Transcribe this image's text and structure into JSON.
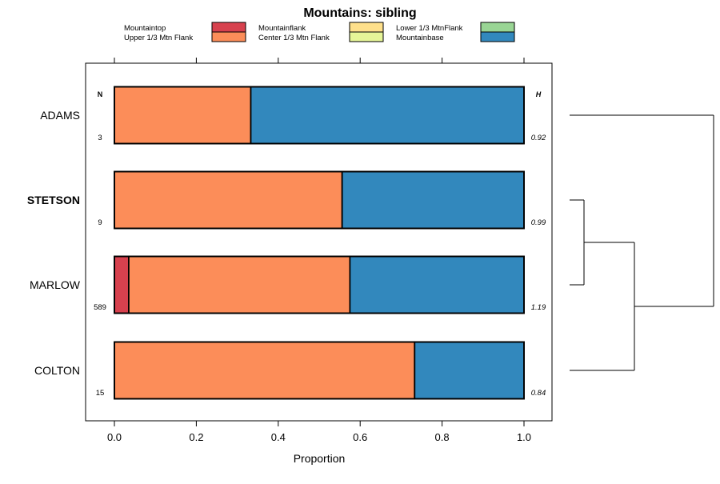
{
  "chart_data": {
    "type": "bar",
    "stacked": true,
    "orientation": "horizontal",
    "title": "Mountains: sibling",
    "xlabel": "Proportion",
    "ylabel": "",
    "xlim": [
      0,
      1
    ],
    "xticks": [
      "0.0",
      "0.2",
      "0.4",
      "0.6",
      "0.8",
      "1.0"
    ],
    "n_header": "N",
    "h_header": "H",
    "legend_position": "top",
    "legend": [
      {
        "name": "Mountaintop",
        "color": "#d7414e"
      },
      {
        "name": "Upper 1/3 Mtn Flank",
        "color": "#fc8d59"
      },
      {
        "name": "Mountainflank",
        "color": "#fee08b"
      },
      {
        "name": "Center 1/3 Mtn Flank",
        "color": "#e6f598"
      },
      {
        "name": "Lower 1/3 MtnFlank",
        "color": "#99d594"
      },
      {
        "name": "Mountainbase",
        "color": "#3288bd"
      }
    ],
    "categories": [
      "ADAMS",
      "STETSON",
      "MARLOW",
      "COLTON"
    ],
    "bold_category": "STETSON",
    "n_values": [
      "3",
      "9",
      "589",
      "15"
    ],
    "h_values": [
      "0.92",
      "0.99",
      "1.19",
      "0.84"
    ],
    "series": [
      {
        "name": "Mountaintop",
        "values": [
          0,
          0,
          0.035,
          0
        ]
      },
      {
        "name": "Upper 1/3 Mtn Flank",
        "values": [
          0.333,
          0.556,
          0.54,
          0.733
        ]
      },
      {
        "name": "Mountainflank",
        "values": [
          0,
          0,
          0,
          0
        ]
      },
      {
        "name": "Center 1/3 Mtn Flank",
        "values": [
          0,
          0,
          0,
          0
        ]
      },
      {
        "name": "Lower 1/3 MtnFlank",
        "values": [
          0,
          0,
          0,
          0
        ]
      },
      {
        "name": "Mountainbase",
        "values": [
          0.667,
          0.444,
          0.425,
          0.267
        ]
      }
    ],
    "dendrogram": {
      "leaves": [
        "ADAMS",
        "STETSON",
        "MARLOW",
        "COLTON"
      ],
      "merges": [
        {
          "a": "STETSON",
          "b": "MARLOW",
          "height": 0.1
        },
        {
          "a": "STETSON+MARLOW",
          "b": "COLTON",
          "height": 0.45
        },
        {
          "a": "STETSON+MARLOW+COLTON",
          "b": "ADAMS",
          "height": 1.0
        }
      ]
    }
  }
}
